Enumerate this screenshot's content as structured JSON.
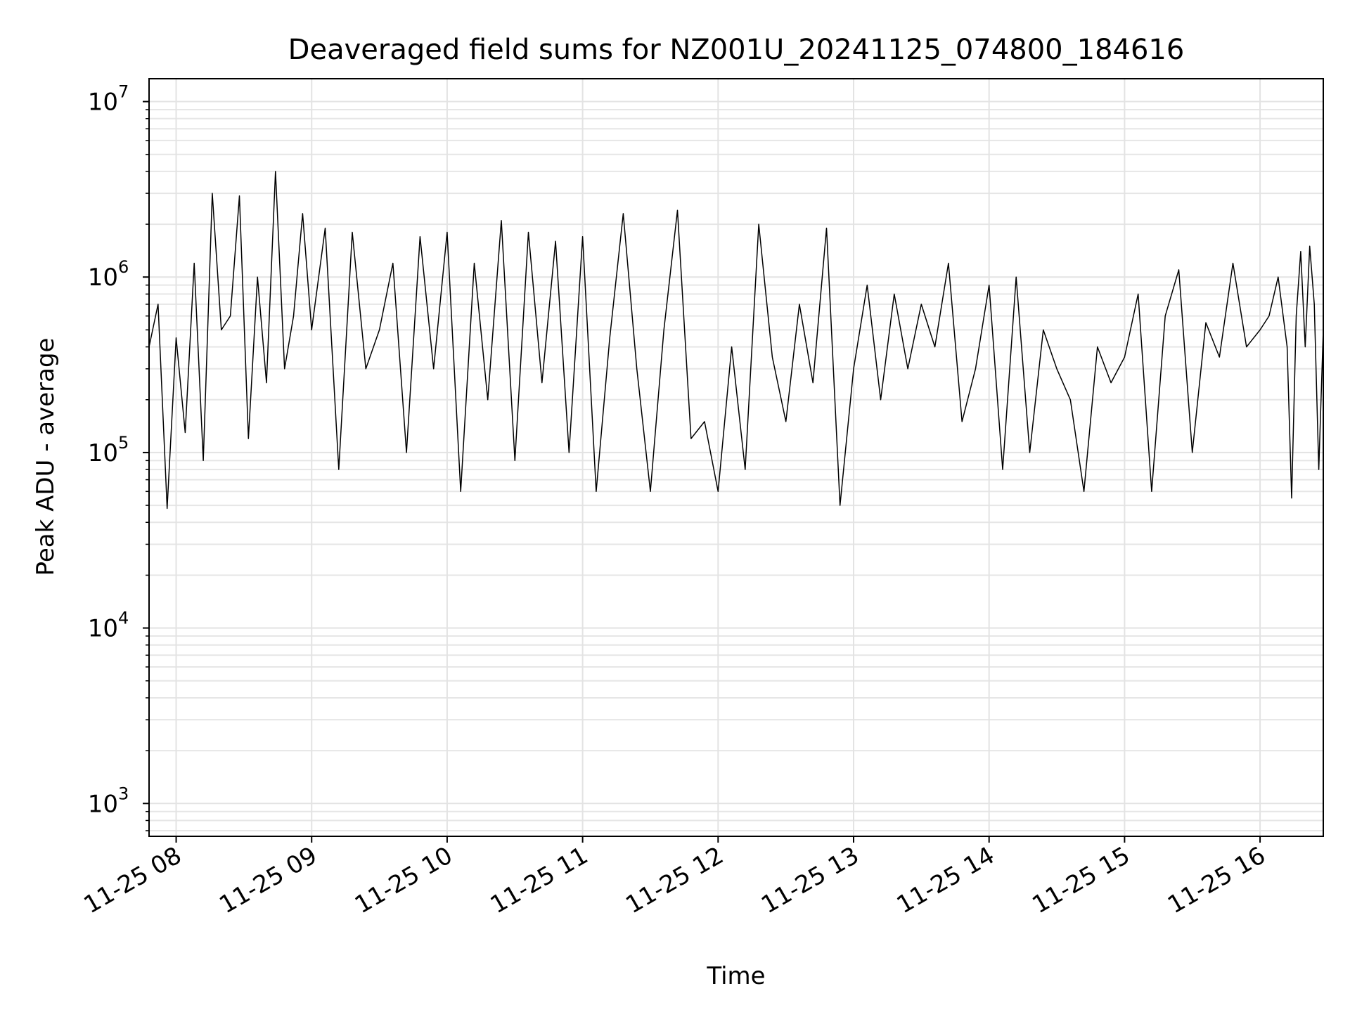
{
  "chart_data": {
    "type": "line",
    "title": "Deaveraged field sums for NZ001U_20241125_074800_184616",
    "xlabel": "Time",
    "ylabel": "Peak ADU - average",
    "yscale": "log",
    "grid": true,
    "legend": "none",
    "xlim": [
      "2024-11-25 07:48",
      "2024-11-25 16:28"
    ],
    "ylim": [
      650,
      13500000
    ],
    "x_ticks": [
      "11-25 08",
      "11-25 09",
      "11-25 10",
      "11-25 11",
      "11-25 12",
      "11-25 13",
      "11-25 14",
      "11-25 15",
      "11-25 16"
    ],
    "x_tick_times": [
      "2024-11-25 08:00",
      "2024-11-25 09:00",
      "2024-11-25 10:00",
      "2024-11-25 11:00",
      "2024-11-25 12:00",
      "2024-11-25 13:00",
      "2024-11-25 14:00",
      "2024-11-25 15:00",
      "2024-11-25 16:00"
    ],
    "y_ticks": [
      {
        "value": 1000,
        "base": "10",
        "exp": "3"
      },
      {
        "value": 10000,
        "base": "10",
        "exp": "4"
      },
      {
        "value": 100000,
        "base": "10",
        "exp": "5"
      },
      {
        "value": 1000000,
        "base": "10",
        "exp": "6"
      },
      {
        "value": 10000000,
        "base": "10",
        "exp": "7"
      }
    ],
    "series": [
      {
        "color": "#000000",
        "x": [
          "2024-11-25 07:48",
          "2024-11-25 07:52",
          "2024-11-25 07:56",
          "2024-11-25 08:00",
          "2024-11-25 08:04",
          "2024-11-25 08:08",
          "2024-11-25 08:12",
          "2024-11-25 08:16",
          "2024-11-25 08:20",
          "2024-11-25 08:24",
          "2024-11-25 08:28",
          "2024-11-25 08:32",
          "2024-11-25 08:36",
          "2024-11-25 08:40",
          "2024-11-25 08:44",
          "2024-11-25 08:48",
          "2024-11-25 08:52",
          "2024-11-25 08:56",
          "2024-11-25 09:00",
          "2024-11-25 09:06",
          "2024-11-25 09:12",
          "2024-11-25 09:18",
          "2024-11-25 09:24",
          "2024-11-25 09:30",
          "2024-11-25 09:36",
          "2024-11-25 09:42",
          "2024-11-25 09:48",
          "2024-11-25 09:54",
          "2024-11-25 10:00",
          "2024-11-25 10:06",
          "2024-11-25 10:12",
          "2024-11-25 10:18",
          "2024-11-25 10:24",
          "2024-11-25 10:30",
          "2024-11-25 10:36",
          "2024-11-25 10:42",
          "2024-11-25 10:48",
          "2024-11-25 10:54",
          "2024-11-25 11:00",
          "2024-11-25 11:06",
          "2024-11-25 11:12",
          "2024-11-25 11:18",
          "2024-11-25 11:24",
          "2024-11-25 11:30",
          "2024-11-25 11:36",
          "2024-11-25 11:42",
          "2024-11-25 11:48",
          "2024-11-25 11:54",
          "2024-11-25 12:00",
          "2024-11-25 12:06",
          "2024-11-25 12:12",
          "2024-11-25 12:18",
          "2024-11-25 12:24",
          "2024-11-25 12:30",
          "2024-11-25 12:36",
          "2024-11-25 12:42",
          "2024-11-25 12:48",
          "2024-11-25 12:54",
          "2024-11-25 13:00",
          "2024-11-25 13:06",
          "2024-11-25 13:12",
          "2024-11-25 13:18",
          "2024-11-25 13:24",
          "2024-11-25 13:30",
          "2024-11-25 13:36",
          "2024-11-25 13:42",
          "2024-11-25 13:48",
          "2024-11-25 13:54",
          "2024-11-25 14:00",
          "2024-11-25 14:06",
          "2024-11-25 14:12",
          "2024-11-25 14:18",
          "2024-11-25 14:24",
          "2024-11-25 14:30",
          "2024-11-25 14:36",
          "2024-11-25 14:42",
          "2024-11-25 14:48",
          "2024-11-25 14:54",
          "2024-11-25 15:00",
          "2024-11-25 15:06",
          "2024-11-25 15:12",
          "2024-11-25 15:18",
          "2024-11-25 15:24",
          "2024-11-25 15:30",
          "2024-11-25 15:36",
          "2024-11-25 15:42",
          "2024-11-25 15:48",
          "2024-11-25 15:54",
          "2024-11-25 16:00",
          "2024-11-25 16:04",
          "2024-11-25 16:08",
          "2024-11-25 16:12",
          "2024-11-25 16:14",
          "2024-11-25 16:16",
          "2024-11-25 16:18",
          "2024-11-25 16:20",
          "2024-11-25 16:22",
          "2024-11-25 16:24",
          "2024-11-25 16:26",
          "2024-11-25 16:28"
        ],
        "y": [
          400000,
          700000,
          48000,
          450000,
          130000,
          1200000,
          90000,
          3000000,
          500000,
          600000,
          2900000,
          120000,
          1000000,
          250000,
          4000000,
          300000,
          600000,
          2300000,
          500000,
          1900000,
          80000,
          1800000,
          300000,
          500000,
          1200000,
          100000,
          1700000,
          300000,
          1800000,
          60000,
          1200000,
          200000,
          2100000,
          90000,
          1800000,
          250000,
          1600000,
          100000,
          1700000,
          60000,
          450000,
          2300000,
          300000,
          60000,
          500000,
          2400000,
          120000,
          150000,
          60000,
          400000,
          80000,
          2000000,
          350000,
          150000,
          700000,
          250000,
          1900000,
          50000,
          300000,
          900000,
          200000,
          800000,
          300000,
          700000,
          400000,
          1200000,
          150000,
          300000,
          900000,
          80000,
          1000000,
          100000,
          500000,
          300000,
          200000,
          60000,
          400000,
          250000,
          350000,
          800000,
          60000,
          600000,
          1100000,
          100000,
          550000,
          350000,
          1200000,
          400000,
          500000,
          600000,
          1000000,
          400000,
          55000,
          600000,
          1400000,
          400000,
          1500000,
          700000,
          80000,
          500000
        ]
      }
    ],
    "annotations": []
  }
}
